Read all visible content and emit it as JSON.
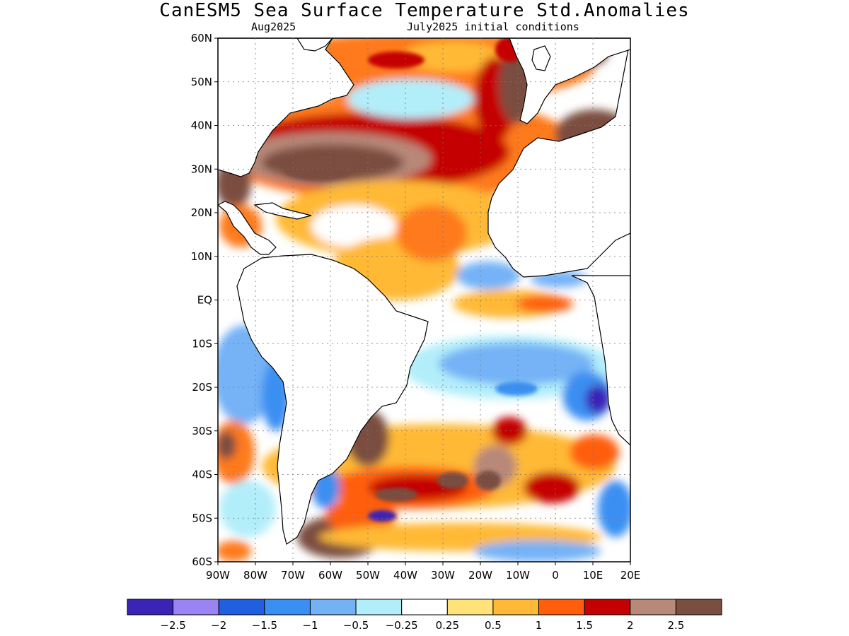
{
  "title": "CanESM5 Sea Surface Temperature Std.Anomalies",
  "subtitle_left": "Aug2025",
  "subtitle_right": "July2025 initial conditions",
  "map": {
    "lon_range": [
      -90,
      20
    ],
    "lat_range": [
      -60,
      60
    ],
    "lat_ticks": [
      "60N",
      "50N",
      "40N",
      "30N",
      "20N",
      "10N",
      "EQ",
      "10S",
      "20S",
      "30S",
      "40S",
      "50S",
      "60S"
    ],
    "lon_ticks": [
      "90W",
      "80W",
      "70W",
      "60W",
      "50W",
      "40W",
      "30W",
      "20W",
      "10W",
      "0",
      "10E",
      "20E"
    ],
    "grid": "dotted"
  },
  "colorbar": {
    "labels": [
      "-2.5",
      "-2",
      "-1.5",
      "-1",
      "-0.5",
      "-0.25",
      "0.25",
      "0.5",
      "1",
      "1.5",
      "2",
      "2.5"
    ],
    "colors": [
      "#3a24b8",
      "#9a84f4",
      "#1f5fe0",
      "#3b8ff2",
      "#74b2f6",
      "#b2eefa",
      "#ffffff",
      "#ffe27a",
      "#ffb936",
      "#ff5f0a",
      "#c40000",
      "#b88878",
      "#7a4e40"
    ]
  }
}
